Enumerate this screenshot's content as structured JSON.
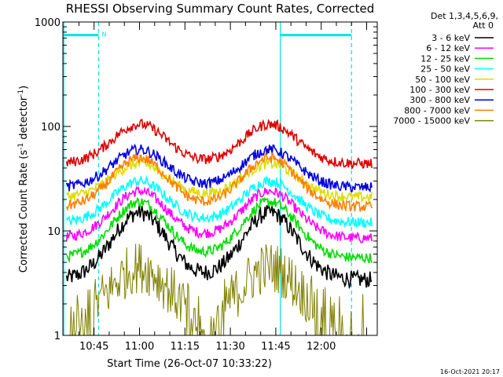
{
  "chart_data": {
    "type": "line",
    "title": "RHESSI Observing Summary Count Rates, Corrected",
    "xlabel": "Start Time (26-Oct-07 10:33:22)",
    "ylabel_main": "Corrected Count Rate (s",
    "ylabel_sup1": "-1",
    "ylabel_mid": " detector",
    "ylabel_sup2": "-1",
    "ylabel_end": ")",
    "y_scale": "log",
    "ylim": [
      1,
      1000
    ],
    "y_ticks": [
      {
        "value": 1,
        "label": "1"
      },
      {
        "value": 10,
        "label": "10"
      },
      {
        "value": 100,
        "label": "100"
      },
      {
        "value": 1000,
        "label": "1000"
      }
    ],
    "x_ticks": [
      "10:45",
      "11:00",
      "11:15",
      "11:30",
      "11:45",
      "12:00"
    ],
    "x_range_minutes": [
      34.7,
      138.5
    ],
    "x_tick_minutes": [
      45,
      60,
      75,
      90,
      105,
      120
    ],
    "legend_header": [
      "Det 1,3,4,5,6,9,",
      "Att 0"
    ],
    "series": [
      {
        "name": "3 - 6 keV",
        "color": "#000000",
        "base": 3.4,
        "peak": 15
      },
      {
        "name": "6 - 12 keV",
        "color": "#ff00ff",
        "base": 8.5,
        "peak": 24
      },
      {
        "name": "12 - 25 keV",
        "color": "#00dd00",
        "base": 5.5,
        "peak": 19
      },
      {
        "name": "25 - 50 keV",
        "color": "#00ffff",
        "base": 12,
        "peak": 30
      },
      {
        "name": "50 - 100 keV",
        "color": "#dddd00",
        "base": 21,
        "peak": 44
      },
      {
        "name": "100 - 300 keV",
        "color": "#dd0000",
        "base": 44,
        "peak": 105
      },
      {
        "name": "300 - 800 keV",
        "color": "#0000dd",
        "base": 26,
        "peak": 60
      },
      {
        "name": "800 - 7000 keV",
        "color": "#ff8000",
        "base": 17,
        "peak": 50
      },
      {
        "name": "7000 - 15000 keV",
        "color": "#808000",
        "base": 1.5,
        "peak": 4.5
      }
    ],
    "peak_times_minutes": [
      60,
      103
    ],
    "markers": {
      "color": "#00e5e5",
      "label": "N",
      "lines_minutes": [
        35.0,
        46.5,
        106.5,
        130.0
      ],
      "bars": [
        [
          35.0,
          46.5
        ],
        [
          106.5,
          130.0
        ]
      ],
      "bar_value": 750
    }
  },
  "footer": {
    "timestamp": "16-Oct-2021 20:17"
  }
}
